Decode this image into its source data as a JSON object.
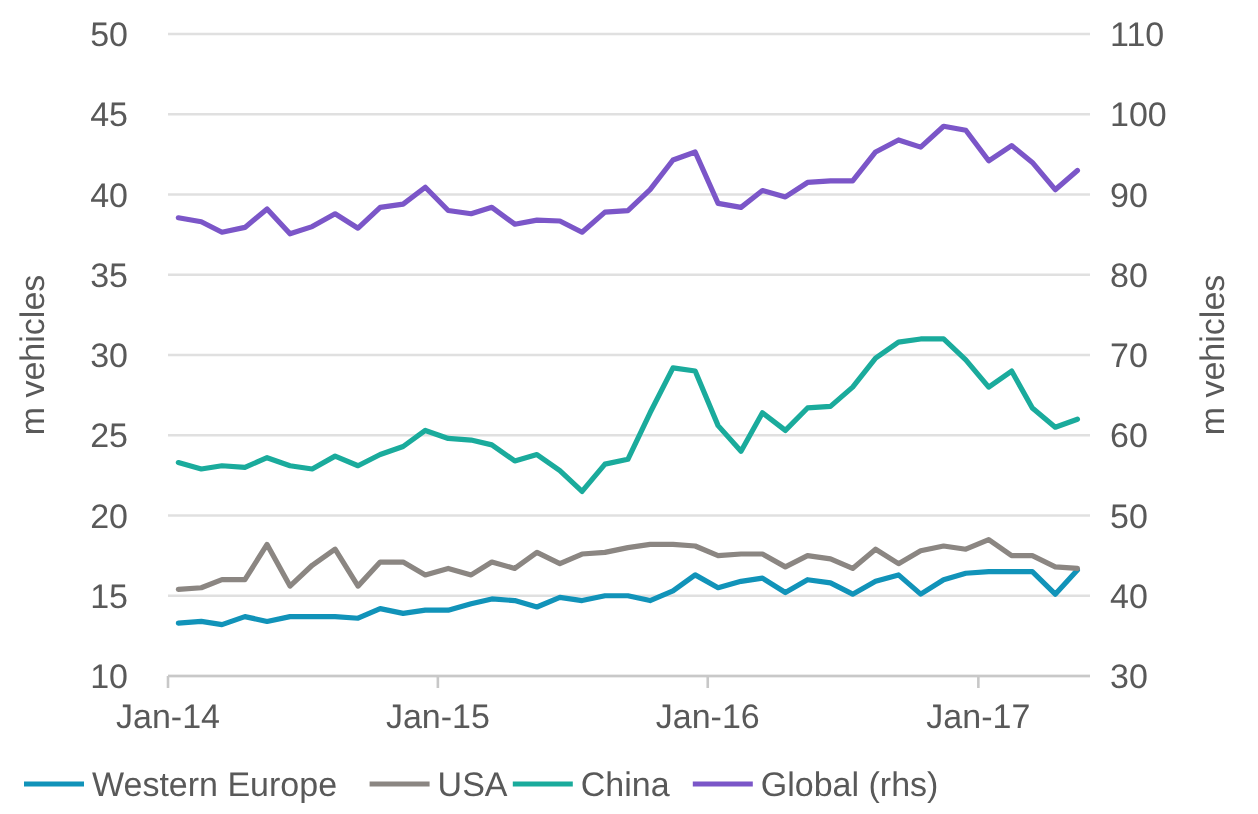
{
  "chart_data": {
    "type": "line",
    "ylabel": "m vehicles",
    "y2label": "m vehicles",
    "x": [
      "2014-01-15",
      "2014-02-15",
      "2014-03-15",
      "2014-04-15",
      "2014-05-15",
      "2014-06-15",
      "2014-07-15",
      "2014-08-15",
      "2014-09-15",
      "2014-10-15",
      "2014-11-15",
      "2014-12-15",
      "2015-01-15",
      "2015-02-15",
      "2015-03-15",
      "2015-04-15",
      "2015-05-15",
      "2015-06-15",
      "2015-07-15",
      "2015-08-15",
      "2015-09-15",
      "2015-10-15",
      "2015-11-15",
      "2015-12-15",
      "2016-01-15",
      "2016-02-15",
      "2016-03-15",
      "2016-04-15",
      "2016-05-15",
      "2016-06-15",
      "2016-07-15",
      "2016-08-15",
      "2016-09-15",
      "2016-10-15",
      "2016-11-15",
      "2016-12-15",
      "2017-01-15",
      "2017-02-15",
      "2017-03-15",
      "2017-04-15",
      "2017-05-15"
    ],
    "series": [
      {
        "name": "Western Europe",
        "color": "#1193b9",
        "values": [
          13.3,
          13.4,
          13.2,
          13.7,
          13.4,
          13.7,
          13.7,
          13.7,
          13.6,
          14.2,
          13.9,
          14.1,
          14.1,
          14.5,
          14.8,
          14.7,
          14.3,
          14.9,
          14.7,
          15.0,
          15.0,
          14.7,
          15.3,
          16.3,
          15.5,
          15.9,
          16.1,
          15.2,
          16.0,
          15.8,
          15.1,
          15.9,
          16.3,
          15.1,
          16.0,
          16.4,
          16.5,
          16.5,
          16.5,
          15.1,
          16.6
        ]
      },
      {
        "name": "USA",
        "color": "#8b8682",
        "values": [
          15.4,
          15.5,
          16.0,
          16.0,
          18.2,
          15.6,
          16.9,
          17.9,
          15.6,
          17.1,
          17.1,
          16.3,
          16.7,
          16.3,
          17.1,
          16.7,
          17.7,
          17.0,
          17.6,
          17.7,
          18.0,
          18.2,
          18.2,
          18.1,
          17.5,
          17.6,
          17.6,
          16.8,
          17.5,
          17.3,
          16.7,
          17.9,
          17.0,
          17.8,
          18.1,
          17.9,
          18.5,
          17.5,
          17.5,
          16.8,
          16.7
        ]
      },
      {
        "name": "China",
        "color": "#1aab9c",
        "values": [
          23.3,
          22.9,
          23.1,
          23.0,
          23.6,
          23.1,
          22.9,
          23.7,
          23.1,
          23.8,
          24.3,
          25.3,
          24.8,
          24.7,
          24.4,
          23.4,
          23.8,
          22.8,
          21.5,
          23.2,
          23.5,
          26.4,
          29.2,
          29.0,
          25.6,
          24.0,
          26.4,
          25.3,
          26.7,
          26.8,
          28.0,
          29.8,
          30.8,
          31.0,
          31.0,
          29.7,
          28.0,
          29.0,
          26.7,
          25.5,
          26.0
        ]
      },
      {
        "name": "Global (rhs)",
        "color": "#7b56c8",
        "axis": "y2",
        "values": [
          87.1,
          86.6,
          85.3,
          85.9,
          88.2,
          85.1,
          86.0,
          87.6,
          85.8,
          88.4,
          88.8,
          90.9,
          88.0,
          87.6,
          88.4,
          86.3,
          86.8,
          86.7,
          85.3,
          87.8,
          88.0,
          90.6,
          94.3,
          95.3,
          88.9,
          88.4,
          90.5,
          89.7,
          91.5,
          91.7,
          91.7,
          95.3,
          96.8,
          95.9,
          98.5,
          98.0,
          94.2,
          96.1,
          94.0,
          90.6,
          93.0
        ]
      }
    ],
    "xlim": [
      "2014-01-01",
      "2017-06-01"
    ],
    "xticks": [
      {
        "value": "2014-01-01",
        "label": "Jan-14"
      },
      {
        "value": "2015-01-01",
        "label": "Jan-15"
      },
      {
        "value": "2016-01-01",
        "label": "Jan-16"
      },
      {
        "value": "2017-01-01",
        "label": "Jan-17"
      }
    ],
    "ylim": [
      10,
      50
    ],
    "yticks": [
      10,
      15,
      20,
      25,
      30,
      35,
      40,
      45,
      50
    ],
    "y2lim": [
      30,
      110
    ],
    "y2ticks": [
      30,
      40,
      50,
      60,
      70,
      80,
      90,
      100,
      110
    ],
    "grid": "y",
    "legend": "bottom",
    "marker": "none",
    "line_style": "solid"
  }
}
